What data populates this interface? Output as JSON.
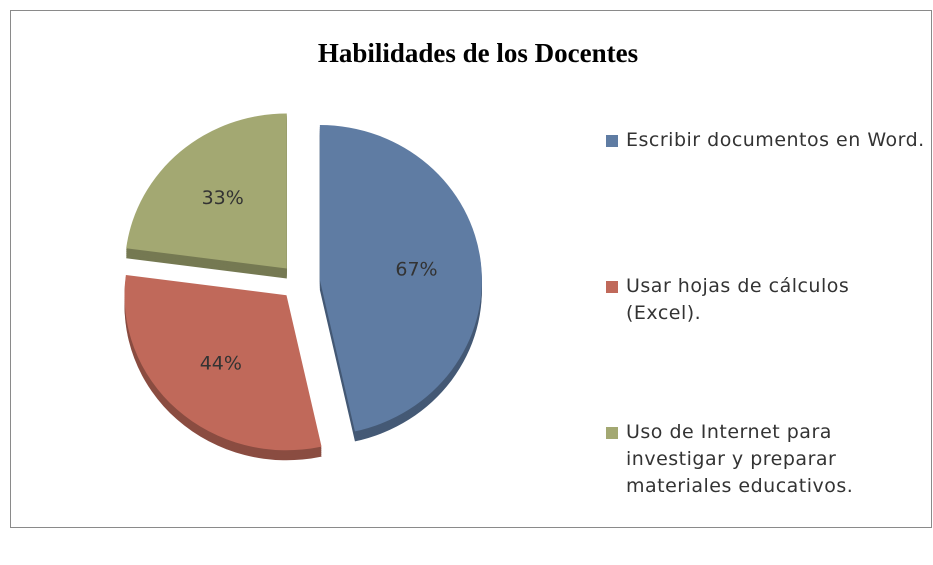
{
  "chart_data": {
    "type": "pie",
    "title": "Habilidades de los Docentes",
    "categories": [
      "Escribir documentos en Word.",
      "Usar hojas de cálculos (Excel).",
      "Uso de Internet para investigar y preparar materiales educativos."
    ],
    "values": [
      67,
      44,
      33
    ],
    "value_labels": [
      "67%",
      "44%",
      "33%"
    ],
    "colors": [
      "#5f7ca3",
      "#c0695a",
      "#a3a872"
    ],
    "legend": "right"
  }
}
